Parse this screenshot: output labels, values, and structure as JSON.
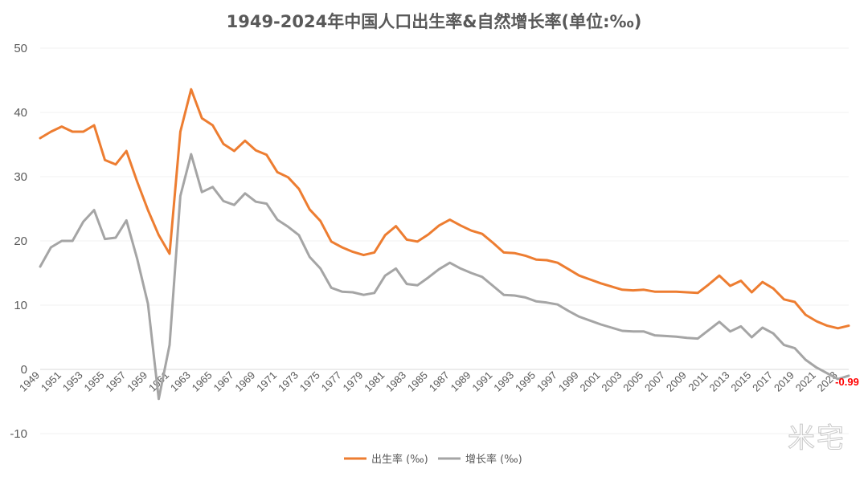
{
  "chart_data": {
    "type": "line",
    "title": "1949-2024年中国人口出生率&自然增长率(单位:‰)",
    "ylim": [
      -10,
      50
    ],
    "yticks": [
      50,
      40,
      30,
      20,
      10,
      0,
      -10
    ],
    "xlabels": [
      "1949",
      "1951",
      "1953",
      "1955",
      "1957",
      "1959",
      "1961",
      "1963",
      "1965",
      "1967",
      "1969",
      "1971",
      "1973",
      "1975",
      "1977",
      "1979",
      "1981",
      "1983",
      "1985",
      "1987",
      "1989",
      "1991",
      "1993",
      "1995",
      "1997",
      "1999",
      "2001",
      "2003",
      "2005",
      "2007",
      "2009",
      "2011",
      "2013",
      "2015",
      "2017",
      "2019",
      "2021",
      "2023"
    ],
    "x": [
      1949,
      1950,
      1951,
      1952,
      1953,
      1954,
      1955,
      1956,
      1957,
      1958,
      1959,
      1960,
      1961,
      1962,
      1963,
      1964,
      1965,
      1966,
      1967,
      1968,
      1969,
      1970,
      1971,
      1972,
      1973,
      1974,
      1975,
      1976,
      1977,
      1978,
      1979,
      1980,
      1981,
      1982,
      1983,
      1984,
      1985,
      1986,
      1987,
      1988,
      1989,
      1990,
      1991,
      1992,
      1993,
      1994,
      1995,
      1996,
      1997,
      1998,
      1999,
      2000,
      2001,
      2002,
      2003,
      2004,
      2005,
      2006,
      2007,
      2008,
      2009,
      2010,
      2011,
      2012,
      2013,
      2014,
      2015,
      2016,
      2017,
      2018,
      2019,
      2020,
      2021,
      2022,
      2023,
      2024
    ],
    "grid": "horizontal",
    "legend_position": "bottom",
    "series": [
      {
        "name": "出生率 (‰)",
        "color": "#ed7d31",
        "values": [
          36.0,
          37.0,
          37.8,
          37.0,
          37.0,
          38.0,
          32.6,
          31.9,
          34.0,
          29.2,
          24.8,
          20.9,
          18.0,
          37.0,
          43.6,
          39.1,
          38.0,
          35.1,
          34.0,
          35.6,
          34.1,
          33.4,
          30.7,
          29.9,
          28.1,
          24.9,
          23.1,
          19.9,
          19.0,
          18.3,
          17.8,
          18.2,
          20.9,
          22.3,
          20.2,
          19.9,
          21.0,
          22.4,
          23.3,
          22.4,
          21.6,
          21.1,
          19.7,
          18.2,
          18.1,
          17.7,
          17.1,
          17.0,
          16.6,
          15.6,
          14.6,
          14.0,
          13.4,
          12.9,
          12.4,
          12.3,
          12.4,
          12.1,
          12.1,
          12.1,
          12.0,
          11.9,
          13.2,
          14.6,
          13.0,
          13.8,
          12.0,
          13.6,
          12.6,
          10.9,
          10.5,
          8.5,
          7.5,
          6.8,
          6.4,
          6.8
        ]
      },
      {
        "name": "增长率 (‰)",
        "color": "#a5a5a5",
        "values": [
          16.0,
          19.0,
          20.0,
          20.0,
          23.0,
          24.8,
          20.3,
          20.5,
          23.2,
          17.2,
          10.2,
          -4.6,
          3.8,
          27.0,
          33.5,
          27.6,
          28.4,
          26.2,
          25.6,
          27.4,
          26.1,
          25.8,
          23.3,
          22.2,
          20.9,
          17.5,
          15.7,
          12.7,
          12.1,
          12.0,
          11.6,
          11.9,
          14.6,
          15.7,
          13.3,
          13.1,
          14.3,
          15.6,
          16.6,
          15.7,
          15.0,
          14.4,
          13.0,
          11.6,
          11.5,
          11.2,
          10.6,
          10.4,
          10.1,
          9.1,
          8.2,
          7.6,
          7.0,
          6.5,
          6.0,
          5.9,
          5.9,
          5.3,
          5.2,
          5.1,
          4.9,
          4.8,
          6.1,
          7.4,
          5.9,
          6.7,
          5.0,
          6.5,
          5.6,
          3.8,
          3.3,
          1.5,
          0.3,
          -0.6,
          -1.5,
          -0.99
        ]
      }
    ],
    "annotations": [
      {
        "text": "-0.99",
        "x": 2024,
        "y": -0.99,
        "color": "#ff0000"
      }
    ]
  },
  "watermark": "米宅"
}
